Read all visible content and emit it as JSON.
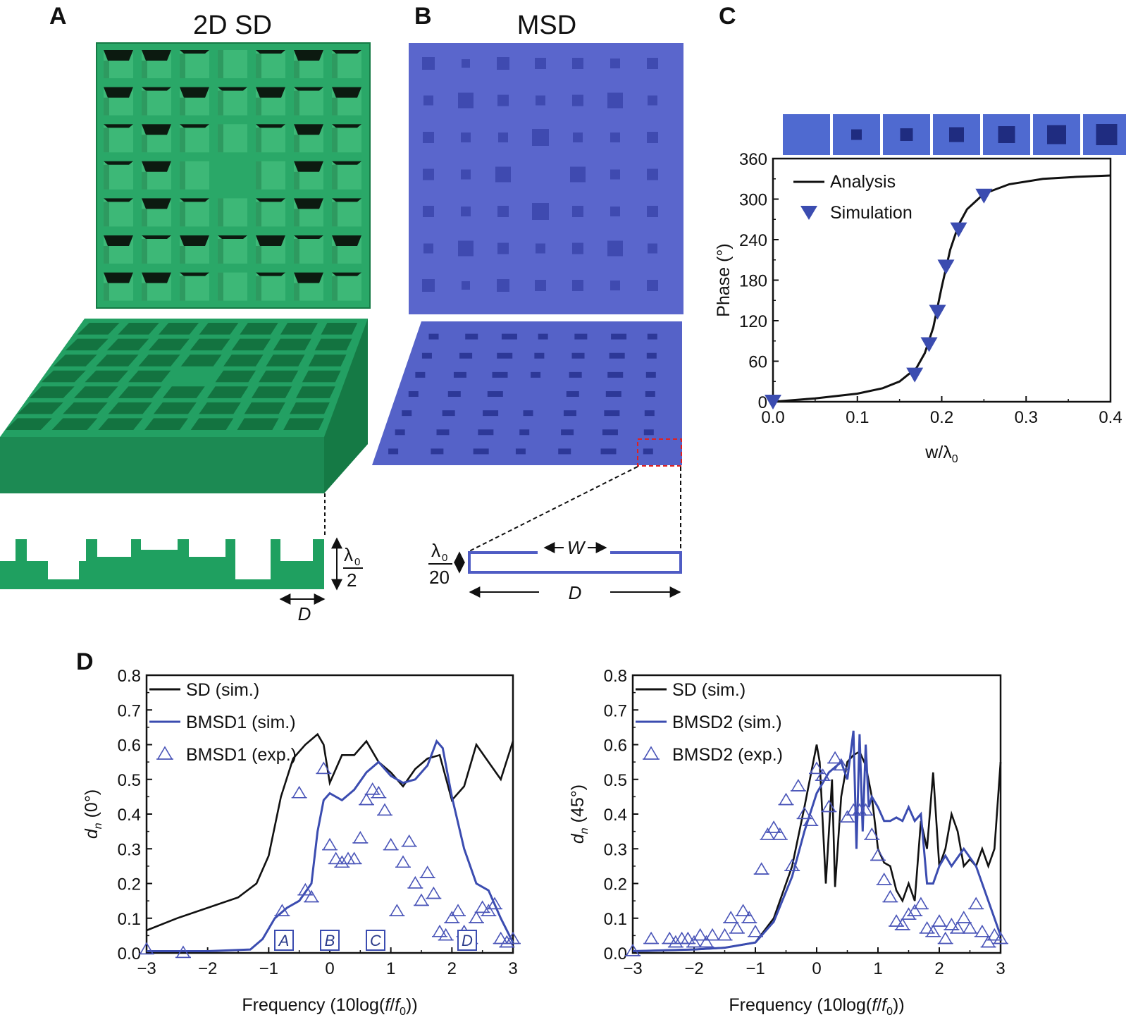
{
  "panels": {
    "A": {
      "letter": "A",
      "title": "2D SD",
      "dim_label": "D",
      "height_num": "λ",
      "height_sub": "0",
      "height_den": "2"
    },
    "B": {
      "letter": "B",
      "title": "MSD",
      "w_label": "W",
      "d_label": "D",
      "height_num": "λ",
      "height_sub": "0",
      "height_den": "20"
    },
    "C": {
      "letter": "C"
    },
    "D": {
      "letter": "D"
    }
  },
  "colors": {
    "green": "#1fa060",
    "green_dark": "#157a45",
    "blue": "#4f5cc4",
    "blue_line": "#3b4cb0",
    "red_dash": "#e02020"
  },
  "chart_data": [
    {
      "id": "C",
      "type": "line",
      "xlabel": "w/λ",
      "xlabel_sub": "0",
      "ylabel": "Phase (°)",
      "xlim": [
        0,
        0.4
      ],
      "ylim": [
        0,
        360
      ],
      "xticks": [
        "0.0",
        "0.1",
        "0.2",
        "0.3",
        "0.4"
      ],
      "yticks": [
        "0",
        "60",
        "120",
        "180",
        "240",
        "300",
        "360"
      ],
      "legend": [
        "Analysis",
        "Simulation"
      ],
      "series": [
        {
          "name": "Analysis",
          "x": [
            0,
            0.05,
            0.1,
            0.13,
            0.15,
            0.17,
            0.18,
            0.19,
            0.2,
            0.21,
            0.22,
            0.23,
            0.25,
            0.28,
            0.32,
            0.36,
            0.4
          ],
          "y": [
            0,
            5,
            12,
            20,
            30,
            50,
            72,
            110,
            170,
            225,
            262,
            285,
            308,
            322,
            330,
            333,
            335
          ]
        },
        {
          "name": "Simulation",
          "x": [
            0,
            0.168,
            0.185,
            0.195,
            0.205,
            0.22,
            0.25
          ],
          "y": [
            0,
            40,
            85,
            133,
            200,
            255,
            305
          ]
        }
      ],
      "inset_squares": 7
    },
    {
      "id": "D1",
      "type": "line",
      "xlabel": "Frequency (10log(f/f",
      "xlabel_sub": "0",
      "xlabel_end": "))",
      "ylabel": "d",
      "ylabel_sub": "n",
      "ylabel_end": " (0°)",
      "xlim": [
        -3,
        3
      ],
      "ylim": [
        0,
        0.8
      ],
      "xticks": [
        "−3",
        "−2",
        "−1",
        "0",
        "1",
        "2",
        "3"
      ],
      "yticks": [
        "0.0",
        "0.1",
        "0.2",
        "0.3",
        "0.4",
        "0.5",
        "0.6",
        "0.7",
        "0.8"
      ],
      "legend": [
        "SD (sim.)",
        "BMSD1  (sim.)",
        "BMSD1  (exp.)"
      ],
      "markers": [
        {
          "label": "A",
          "x": -0.75
        },
        {
          "label": "B",
          "x": 0.0
        },
        {
          "label": "C",
          "x": 0.75
        },
        {
          "label": "D",
          "x": 2.25
        }
      ],
      "series": [
        {
          "name": "SD (sim.)",
          "x": [
            -3,
            -2.5,
            -2,
            -1.5,
            -1.2,
            -1.0,
            -0.8,
            -0.6,
            -0.4,
            -0.2,
            -0.1,
            0.0,
            0.2,
            0.4,
            0.6,
            0.8,
            1.0,
            1.2,
            1.4,
            1.6,
            1.8,
            2.0,
            2.2,
            2.4,
            2.6,
            2.8,
            3.0
          ],
          "y": [
            0.065,
            0.1,
            0.13,
            0.16,
            0.2,
            0.28,
            0.45,
            0.56,
            0.6,
            0.63,
            0.6,
            0.49,
            0.57,
            0.57,
            0.61,
            0.55,
            0.52,
            0.48,
            0.53,
            0.56,
            0.57,
            0.44,
            0.48,
            0.6,
            0.55,
            0.5,
            0.61
          ]
        },
        {
          "name": "BMSD1  (sim.)",
          "x": [
            -3,
            -2,
            -1.3,
            -1.1,
            -0.9,
            -0.7,
            -0.5,
            -0.3,
            -0.2,
            -0.1,
            0.0,
            0.2,
            0.4,
            0.6,
            0.8,
            1.0,
            1.2,
            1.4,
            1.6,
            1.75,
            1.85,
            2.0,
            2.2,
            2.4,
            2.6,
            2.8,
            3.0
          ],
          "y": [
            0.005,
            0.005,
            0.01,
            0.04,
            0.1,
            0.13,
            0.15,
            0.2,
            0.35,
            0.44,
            0.46,
            0.44,
            0.47,
            0.52,
            0.55,
            0.51,
            0.49,
            0.5,
            0.54,
            0.61,
            0.59,
            0.45,
            0.3,
            0.2,
            0.18,
            0.1,
            0.03
          ]
        },
        {
          "name": "BMSD1  (exp.)",
          "x": [
            -3,
            -2.4,
            -0.78,
            -0.5,
            -0.4,
            -0.3,
            -0.1,
            0.0,
            0.1,
            0.2,
            0.3,
            0.4,
            0.5,
            0.6,
            0.7,
            0.8,
            0.9,
            1.0,
            1.1,
            1.2,
            1.3,
            1.4,
            1.5,
            1.6,
            1.7,
            1.8,
            1.9,
            2.0,
            2.1,
            2.2,
            2.3,
            2.4,
            2.5,
            2.6,
            2.7,
            2.8,
            2.9,
            3.0
          ],
          "y": [
            0.01,
            0.0,
            0.12,
            0.46,
            0.18,
            0.16,
            0.53,
            0.31,
            0.27,
            0.26,
            0.27,
            0.27,
            0.33,
            0.44,
            0.47,
            0.46,
            0.41,
            0.31,
            0.12,
            0.26,
            0.32,
            0.2,
            0.15,
            0.23,
            0.17,
            0.06,
            0.05,
            0.1,
            0.12,
            0.06,
            0.04,
            0.1,
            0.13,
            0.12,
            0.14,
            0.04,
            0.03,
            0.04
          ]
        }
      ]
    },
    {
      "id": "D2",
      "type": "line",
      "xlabel": "Frequency (10log(f/f",
      "xlabel_sub": "0",
      "xlabel_end": "))",
      "ylabel": "d",
      "ylabel_sub": "n",
      "ylabel_end": " (45°)",
      "xlim": [
        -3,
        3
      ],
      "ylim": [
        0,
        0.8
      ],
      "xticks": [
        "−3",
        "−2",
        "−1",
        "0",
        "1",
        "2",
        "3"
      ],
      "yticks": [
        "0.0",
        "0.1",
        "0.2",
        "0.3",
        "0.4",
        "0.5",
        "0.6",
        "0.7",
        "0.8"
      ],
      "legend": [
        "SD (sim.)",
        "BMSD2  (sim.)",
        "BMSD2  (exp.)"
      ],
      "series": [
        {
          "name": "SD (sim.)",
          "x": [
            -3,
            -2,
            -1.5,
            -1.0,
            -0.7,
            -0.4,
            -0.2,
            0.0,
            0.05,
            0.15,
            0.25,
            0.3,
            0.4,
            0.5,
            0.6,
            0.7,
            0.8,
            0.9,
            1.0,
            1.1,
            1.2,
            1.3,
            1.4,
            1.5,
            1.6,
            1.7,
            1.8,
            1.9,
            2.0,
            2.1,
            2.2,
            2.3,
            2.4,
            2.5,
            2.6,
            2.7,
            2.8,
            2.9,
            3.0
          ],
          "y": [
            0.005,
            0.01,
            0.015,
            0.03,
            0.1,
            0.25,
            0.42,
            0.6,
            0.55,
            0.2,
            0.5,
            0.19,
            0.45,
            0.55,
            0.57,
            0.58,
            0.54,
            0.45,
            0.3,
            0.26,
            0.25,
            0.18,
            0.15,
            0.2,
            0.15,
            0.38,
            0.3,
            0.52,
            0.25,
            0.3,
            0.4,
            0.35,
            0.25,
            0.27,
            0.25,
            0.3,
            0.25,
            0.3,
            0.55
          ]
        },
        {
          "name": "BMSD2  (sim.)",
          "x": [
            -3,
            -2,
            -1.5,
            -1.0,
            -0.7,
            -0.4,
            -0.2,
            0.0,
            0.2,
            0.4,
            0.5,
            0.6,
            0.65,
            0.7,
            0.75,
            0.8,
            0.85,
            0.9,
            1.0,
            1.1,
            1.2,
            1.3,
            1.4,
            1.5,
            1.6,
            1.7,
            1.8,
            1.9,
            2.0,
            2.1,
            2.2,
            2.4,
            2.6,
            2.8,
            3.0
          ],
          "y": [
            0.005,
            0.01,
            0.015,
            0.03,
            0.09,
            0.22,
            0.35,
            0.46,
            0.52,
            0.55,
            0.5,
            0.64,
            0.3,
            0.63,
            0.35,
            0.6,
            0.42,
            0.45,
            0.42,
            0.38,
            0.38,
            0.39,
            0.38,
            0.42,
            0.38,
            0.4,
            0.2,
            0.2,
            0.25,
            0.28,
            0.25,
            0.3,
            0.25,
            0.15,
            0.05
          ]
        },
        {
          "name": "BMSD2  (exp.)",
          "x": [
            -3,
            -2.7,
            -2.4,
            -2.3,
            -2.2,
            -2.1,
            -2.0,
            -1.9,
            -1.8,
            -1.7,
            -1.5,
            -1.4,
            -1.3,
            -1.2,
            -1.1,
            -1.0,
            -0.9,
            -0.8,
            -0.7,
            -0.6,
            -0.5,
            -0.4,
            -0.3,
            -0.2,
            -0.1,
            0.0,
            0.1,
            0.2,
            0.3,
            0.4,
            0.5,
            0.6,
            0.7,
            0.8,
            0.9,
            1.0,
            1.1,
            1.2,
            1.3,
            1.4,
            1.5,
            1.6,
            1.7,
            1.8,
            1.9,
            2.0,
            2.1,
            2.2,
            2.3,
            2.4,
            2.5,
            2.6,
            2.7,
            2.8,
            2.9,
            3.0
          ],
          "y": [
            0.005,
            0.04,
            0.04,
            0.03,
            0.04,
            0.04,
            0.03,
            0.05,
            0.03,
            0.05,
            0.05,
            0.1,
            0.07,
            0.12,
            0.1,
            0.06,
            0.24,
            0.34,
            0.36,
            0.34,
            0.44,
            0.25,
            0.48,
            0.4,
            0.38,
            0.53,
            0.51,
            0.42,
            0.56,
            0.54,
            0.39,
            0.41,
            0.41,
            0.41,
            0.34,
            0.28,
            0.21,
            0.16,
            0.09,
            0.08,
            0.11,
            0.12,
            0.14,
            0.07,
            0.06,
            0.09,
            0.04,
            0.08,
            0.07,
            0.1,
            0.07,
            0.14,
            0.06,
            0.03,
            0.05,
            0.04
          ]
        }
      ]
    }
  ]
}
